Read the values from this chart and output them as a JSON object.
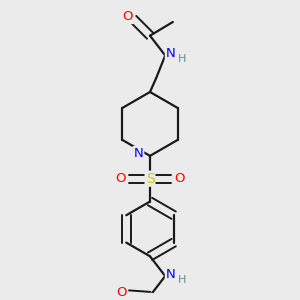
{
  "bg_color": "#ebebeb",
  "bond_color": "#1a1a1a",
  "colors": {
    "O": "#ff0000",
    "N": "#0000ff",
    "S": "#cccc00",
    "H": "#5f9090",
    "C": "#1a1a1a"
  }
}
